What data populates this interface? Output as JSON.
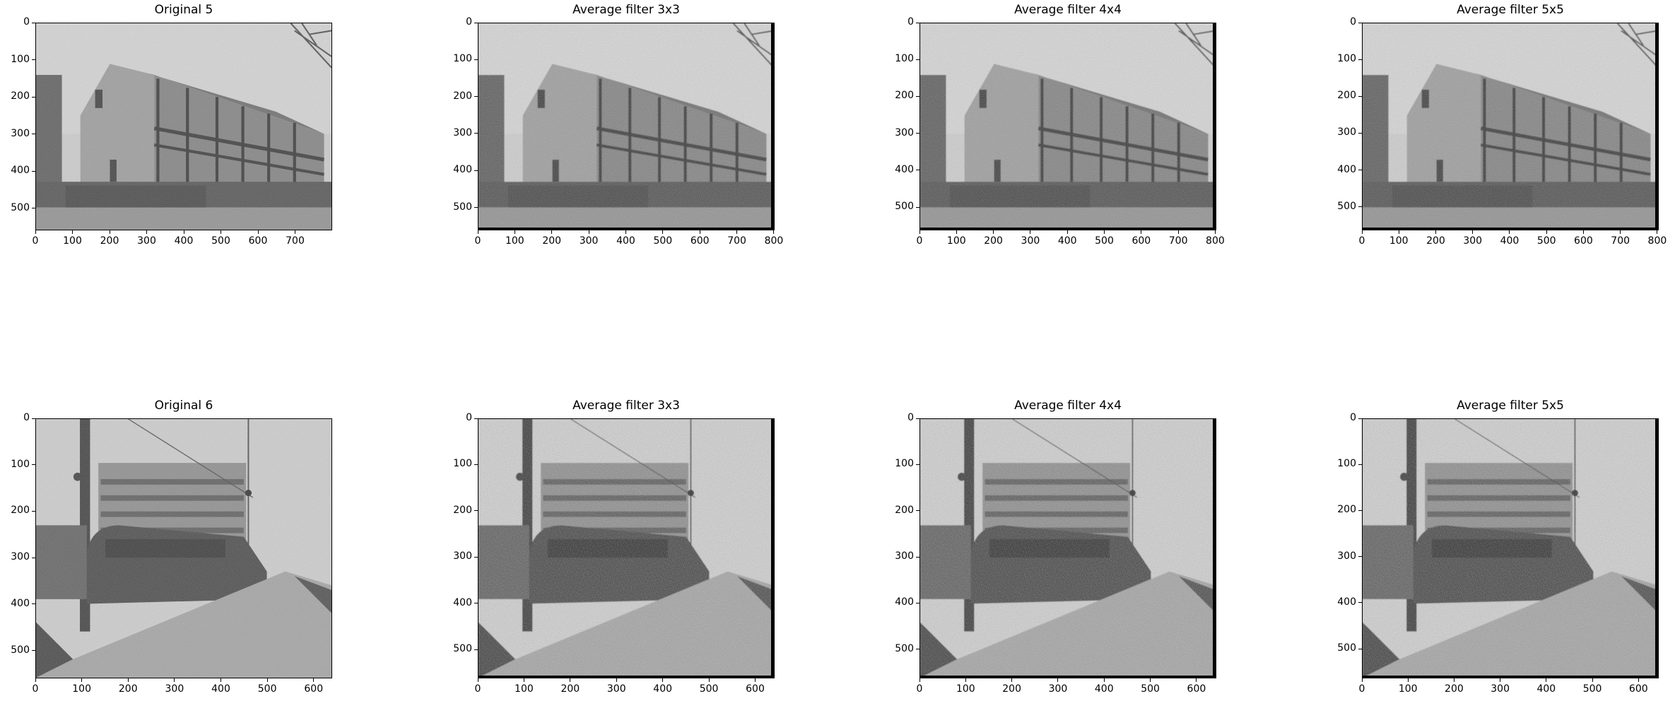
{
  "figure": {
    "panels": [
      {
        "id": "p1",
        "title": "Original 5",
        "image": "house-grayscale",
        "width": 800,
        "height": 560,
        "x_ticks": [
          0,
          100,
          200,
          300,
          400,
          500,
          600,
          700
        ],
        "y_ticks": [
          0,
          100,
          200,
          300,
          400,
          500
        ],
        "edge_bar": false
      },
      {
        "id": "p2",
        "title": "Average filter 3x3",
        "image": "house-grayscale-smoothed",
        "width": 802,
        "height": 562,
        "x_ticks": [
          0,
          100,
          200,
          300,
          400,
          500,
          600,
          700,
          800
        ],
        "y_ticks": [
          0,
          100,
          200,
          300,
          400,
          500
        ],
        "edge_bar": true
      },
      {
        "id": "p3",
        "title": "Average filter 4x4",
        "image": "house-grayscale-smoothed",
        "width": 803,
        "height": 563,
        "x_ticks": [
          0,
          100,
          200,
          300,
          400,
          500,
          600,
          700,
          800
        ],
        "y_ticks": [
          0,
          100,
          200,
          300,
          400,
          500
        ],
        "edge_bar": true
      },
      {
        "id": "p4",
        "title": "Average filter 5x5",
        "image": "house-grayscale-smoothed",
        "width": 804,
        "height": 564,
        "x_ticks": [
          0,
          100,
          200,
          300,
          400,
          500,
          600,
          700,
          800
        ],
        "y_ticks": [
          0,
          100,
          200,
          300,
          400,
          500
        ],
        "edge_bar": true
      },
      {
        "id": "p5",
        "title": "Original 6",
        "image": "train-station-grayscale",
        "width": 640,
        "height": 560,
        "x_ticks": [
          0,
          100,
          200,
          300,
          400,
          500,
          600
        ],
        "y_ticks": [
          0,
          100,
          200,
          300,
          400,
          500
        ],
        "edge_bar": false
      },
      {
        "id": "p6",
        "title": "Average filter 3x3",
        "image": "train-station-grayscale-smoothed",
        "width": 642,
        "height": 562,
        "x_ticks": [
          0,
          100,
          200,
          300,
          400,
          500,
          600
        ],
        "y_ticks": [
          0,
          100,
          200,
          300,
          400,
          500
        ],
        "edge_bar": true
      },
      {
        "id": "p7",
        "title": "Average filter 4x4",
        "image": "train-station-grayscale-smoothed",
        "width": 643,
        "height": 563,
        "x_ticks": [
          0,
          100,
          200,
          300,
          400,
          500,
          600
        ],
        "y_ticks": [
          0,
          100,
          200,
          300,
          400,
          500
        ],
        "edge_bar": true
      },
      {
        "id": "p8",
        "title": "Average filter 5x5",
        "image": "train-station-grayscale-smoothed",
        "width": 644,
        "height": 564,
        "x_ticks": [
          0,
          100,
          200,
          300,
          400,
          500,
          600
        ],
        "y_ticks": [
          0,
          100,
          200,
          300,
          400,
          500
        ],
        "edge_bar": true
      }
    ]
  }
}
